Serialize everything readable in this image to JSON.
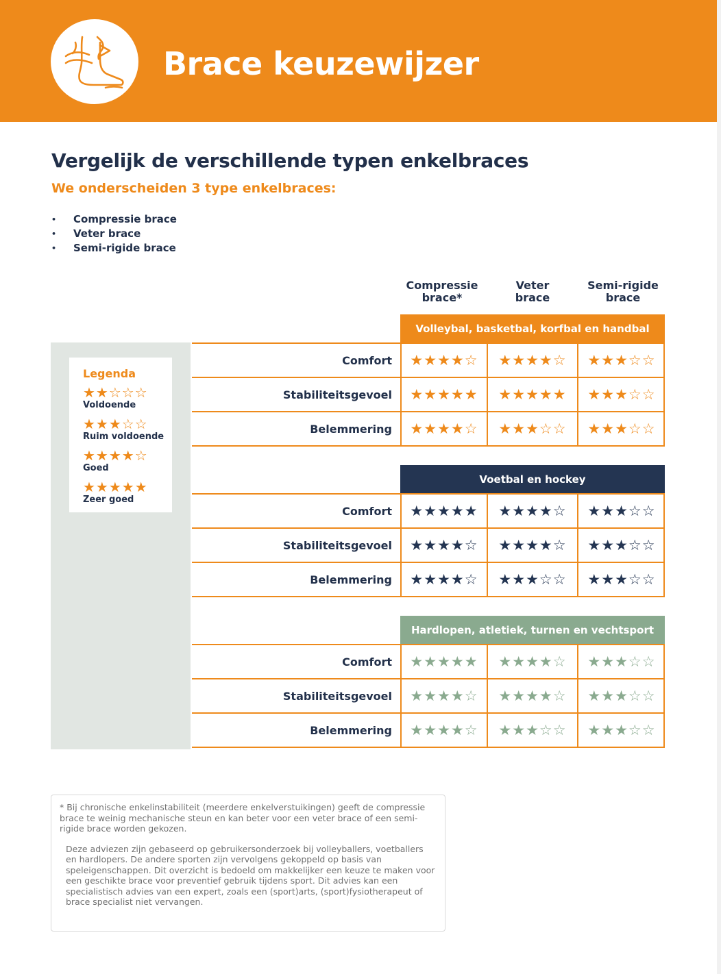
{
  "header": {
    "title": "Brace keuzewijzer",
    "logo_icon": "ankle-foot-icon",
    "bg_color": "#ee8a1b"
  },
  "intro": {
    "heading": "Vergelijk de verschillende typen enkelbraces",
    "subheading": "We onderscheiden 3 type enkelbraces:",
    "types": [
      "Compressie brace",
      "Veter brace",
      "Semi-rigide brace"
    ]
  },
  "columns": [
    {
      "line1": "Compressie",
      "line2": "brace*"
    },
    {
      "line1": "Veter",
      "line2": "brace"
    },
    {
      "line1": "Semi-rigide",
      "line2": "brace"
    }
  ],
  "legend": {
    "title": "Legenda",
    "entries": [
      {
        "rating": 2,
        "label": "Voldoende"
      },
      {
        "rating": 3,
        "label": "Ruim voldoende"
      },
      {
        "rating": 4,
        "label": "Goed"
      },
      {
        "rating": 5,
        "label": "Zeer goed"
      }
    ]
  },
  "sections": [
    {
      "title": "Volleybal, basketbal, korfbal en handbal",
      "color": "#ee8a1b",
      "star_color": "#ee8a1b",
      "rows": [
        {
          "label": "Comfort",
          "ratings": [
            4,
            4,
            3
          ]
        },
        {
          "label": "Stabiliteitsgevoel",
          "ratings": [
            5,
            5,
            3
          ]
        },
        {
          "label": "Belemmering",
          "ratings": [
            4,
            3,
            3
          ]
        }
      ]
    },
    {
      "title": "Voetbal en hockey",
      "color": "#243552",
      "star_color": "#243552",
      "rows": [
        {
          "label": "Comfort",
          "ratings": [
            5,
            4,
            3
          ]
        },
        {
          "label": "Stabiliteitsgevoel",
          "ratings": [
            4,
            4,
            3
          ]
        },
        {
          "label": "Belemmering",
          "ratings": [
            4,
            3,
            3
          ]
        }
      ]
    },
    {
      "title": "Hardlopen, atletiek, turnen en vechtsport",
      "color": "#8aaa8f",
      "star_color": "#8aaa8f",
      "rows": [
        {
          "label": "Comfort",
          "ratings": [
            5,
            4,
            3
          ]
        },
        {
          "label": "Stabiliteitsgevoel",
          "ratings": [
            4,
            4,
            3
          ]
        },
        {
          "label": "Belemmering",
          "ratings": [
            4,
            3,
            3
          ]
        }
      ]
    }
  ],
  "footnote": {
    "para1": "* Bij chronische enkelinstabiliteit (meerdere enkelverstuikingen) geeft de compressie brace te weinig mechanische steun en kan beter voor een veter brace of een semi-rigide brace worden gekozen.",
    "para2": "Deze adviezen zijn gebaseerd op gebruikersonderzoek bij volleyballers, voetballers en hardlopers. De andere sporten zijn vervolgens gekoppeld op basis van speleigenschappen. Dit overzicht is bedoeld om makkelijker een keuze te maken voor een geschikte brace voor preventief gebruik tijdens sport. Dit advies kan een specialistisch advies van een expert, zoals een (sport)arts, (sport)fysiotherapeut of brace specialist niet vervangen."
  }
}
